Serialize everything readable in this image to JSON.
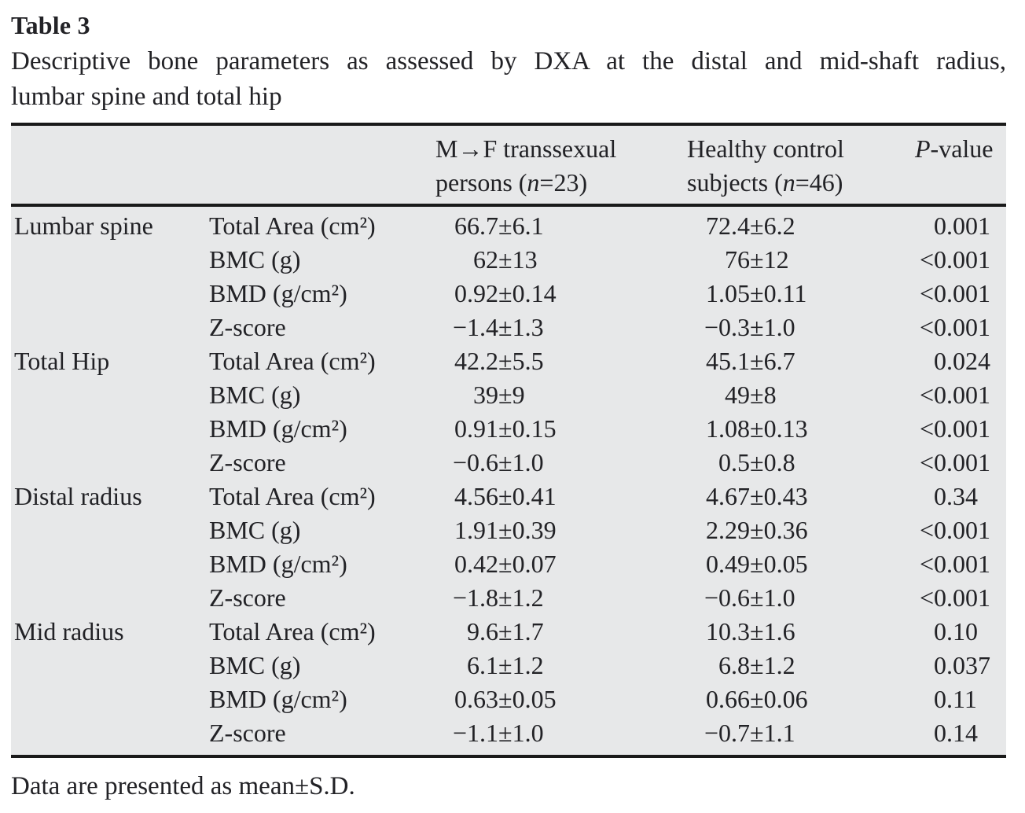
{
  "page": {
    "title": "Table 3",
    "caption_line1": "Descriptive bone parameters as assessed by DXA at the distal and mid-shaft radius,",
    "caption_line2": "lumbar spine and total hip",
    "footnote": "Data are presented as mean±S.D."
  },
  "colors": {
    "table_background": "#e7e8e9",
    "rule": "#1a1a1a",
    "text": "#222226"
  },
  "table": {
    "columns": {
      "ts": {
        "line1": "M→F transsexual",
        "line2_pre": "persons (",
        "line2_var": "n",
        "line2_post": "=23)"
      },
      "hc": {
        "line1": "Healthy control",
        "line2_pre": "subjects (",
        "line2_var": "n",
        "line2_post": "=46)"
      },
      "p": {
        "var": "P",
        "rest": "-value"
      }
    },
    "rows": [
      {
        "group": "Lumbar spine",
        "param": "Total Area (cm²)",
        "ts_mean": "66.7",
        "ts_sd": "±6.1",
        "hc_mean": "72.4",
        "hc_sd": "±6.2",
        "p_prefix": "",
        "p": "0.001"
      },
      {
        "group": "",
        "param": "BMC (g)",
        "ts_mean": "62",
        "ts_sd": "±13",
        "hc_mean": "76",
        "hc_sd": "±12",
        "p_prefix": "<",
        "p": "0.001"
      },
      {
        "group": "",
        "param": "BMD (g/cm²)",
        "ts_mean": "0.92",
        "ts_sd": "±0.14",
        "hc_mean": "1.05",
        "hc_sd": "±0.11",
        "p_prefix": "<",
        "p": "0.001"
      },
      {
        "group": "",
        "param": "Z-score",
        "ts_mean": "−1.4",
        "ts_sd": "±1.3",
        "hc_mean": "−0.3",
        "hc_sd": "±1.0",
        "p_prefix": "<",
        "p": "0.001"
      },
      {
        "group": "Total Hip",
        "param": "Total Area (cm²)",
        "ts_mean": "42.2",
        "ts_sd": "±5.5",
        "hc_mean": "45.1",
        "hc_sd": "±6.7",
        "p_prefix": "",
        "p": "0.024"
      },
      {
        "group": "",
        "param": "BMC (g)",
        "ts_mean": "39",
        "ts_sd": "±9",
        "hc_mean": "49",
        "hc_sd": "±8",
        "p_prefix": "<",
        "p": "0.001"
      },
      {
        "group": "",
        "param": "BMD (g/cm²)",
        "ts_mean": "0.91",
        "ts_sd": "±0.15",
        "hc_mean": "1.08",
        "hc_sd": "±0.13",
        "p_prefix": "<",
        "p": "0.001"
      },
      {
        "group": "",
        "param": "Z-score",
        "ts_mean": "−0.6",
        "ts_sd": "±1.0",
        "hc_mean": "0.5",
        "hc_sd": "±0.8",
        "p_prefix": "<",
        "p": "0.001"
      },
      {
        "group": "Distal radius",
        "param": "Total Area (cm²)",
        "ts_mean": "4.56",
        "ts_sd": "±0.41",
        "hc_mean": "4.67",
        "hc_sd": "±0.43",
        "p_prefix": "",
        "p": "0.34"
      },
      {
        "group": "",
        "param": "BMC (g)",
        "ts_mean": "1.91",
        "ts_sd": "±0.39",
        "hc_mean": "2.29",
        "hc_sd": "±0.36",
        "p_prefix": "<",
        "p": "0.001"
      },
      {
        "group": "",
        "param": "BMD (g/cm²)",
        "ts_mean": "0.42",
        "ts_sd": "±0.07",
        "hc_mean": "0.49",
        "hc_sd": "±0.05",
        "p_prefix": "<",
        "p": "0.001"
      },
      {
        "group": "",
        "param": "Z-score",
        "ts_mean": "−1.8",
        "ts_sd": "±1.2",
        "hc_mean": "−0.6",
        "hc_sd": "±1.0",
        "p_prefix": "<",
        "p": "0.001"
      },
      {
        "group": "Mid radius",
        "param": "Total Area (cm²)",
        "ts_mean": "9.6",
        "ts_sd": "±1.7",
        "hc_mean": "10.3",
        "hc_sd": "±1.6",
        "p_prefix": "",
        "p": "0.10"
      },
      {
        "group": "",
        "param": "BMC (g)",
        "ts_mean": "6.1",
        "ts_sd": "±1.2",
        "hc_mean": "6.8",
        "hc_sd": "±1.2",
        "p_prefix": "",
        "p": "0.037"
      },
      {
        "group": "",
        "param": "BMD (g/cm²)",
        "ts_mean": "0.63",
        "ts_sd": "±0.05",
        "hc_mean": "0.66",
        "hc_sd": "±0.06",
        "p_prefix": "",
        "p": "0.11"
      },
      {
        "group": "",
        "param": "Z-score",
        "ts_mean": "−1.1",
        "ts_sd": "±1.0",
        "hc_mean": "−0.7",
        "hc_sd": "±1.1",
        "p_prefix": "",
        "p": "0.14"
      }
    ]
  }
}
